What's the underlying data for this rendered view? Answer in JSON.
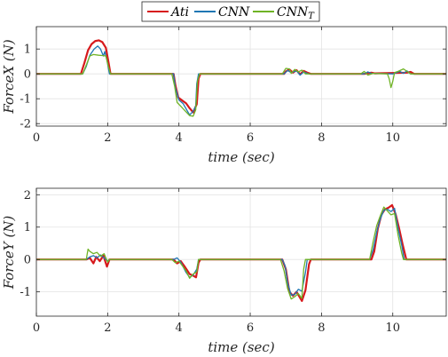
{
  "chart_data": [
    {
      "type": "line",
      "xlabel": "time (sec)",
      "ylabel": "ForceX (N)",
      "xlim": [
        0,
        11.5
      ],
      "ylim": [
        -2.1,
        1.9
      ],
      "xticks": [
        "0",
        "2",
        "4",
        "6",
        "8",
        "10"
      ],
      "yticks": [
        "-2",
        "-1",
        "0",
        "1"
      ],
      "grid": true,
      "series": [
        {
          "name": "Ati",
          "color": "#d7191c",
          "points": [
            [
              0,
              0
            ],
            [
              1.25,
              0
            ],
            [
              1.35,
              0.45
            ],
            [
              1.45,
              0.95
            ],
            [
              1.55,
              1.2
            ],
            [
              1.65,
              1.32
            ],
            [
              1.75,
              1.35
            ],
            [
              1.85,
              1.28
            ],
            [
              1.95,
              1.05
            ],
            [
              2.02,
              0.5
            ],
            [
              2.08,
              0
            ],
            [
              3.85,
              0
            ],
            [
              3.9,
              -0.45
            ],
            [
              3.98,
              -0.95
            ],
            [
              4.1,
              -1.08
            ],
            [
              4.2,
              -1.18
            ],
            [
              4.3,
              -1.38
            ],
            [
              4.4,
              -1.55
            ],
            [
              4.5,
              -1.22
            ],
            [
              4.55,
              -0.2
            ],
            [
              4.6,
              0
            ],
            [
              6.95,
              0
            ],
            [
              7.0,
              0.1
            ],
            [
              7.1,
              0.18
            ],
            [
              7.2,
              0.05
            ],
            [
              7.3,
              0.15
            ],
            [
              7.4,
              -0.02
            ],
            [
              7.5,
              0.12
            ],
            [
              7.6,
              0.05
            ],
            [
              7.7,
              0
            ],
            [
              9.2,
              0
            ],
            [
              9.4,
              0.05
            ],
            [
              9.5,
              0.02
            ],
            [
              10.4,
              0.05
            ],
            [
              10.5,
              0.08
            ],
            [
              10.6,
              0
            ],
            [
              11.5,
              0
            ]
          ]
        },
        {
          "name": "CNN",
          "color": "#1f77b4",
          "points": [
            [
              0,
              0
            ],
            [
              1.3,
              0
            ],
            [
              1.4,
              0.3
            ],
            [
              1.5,
              0.75
            ],
            [
              1.62,
              1.0
            ],
            [
              1.72,
              1.12
            ],
            [
              1.8,
              1.0
            ],
            [
              1.88,
              0.72
            ],
            [
              1.92,
              0.9
            ],
            [
              1.98,
              0.55
            ],
            [
              2.05,
              0
            ],
            [
              3.85,
              0
            ],
            [
              3.9,
              -0.55
            ],
            [
              4.0,
              -1.05
            ],
            [
              4.12,
              -1.2
            ],
            [
              4.22,
              -1.45
            ],
            [
              4.3,
              -1.65
            ],
            [
              4.4,
              -1.5
            ],
            [
              4.47,
              -1.3
            ],
            [
              4.5,
              -0.4
            ],
            [
              4.55,
              0
            ],
            [
              6.95,
              0
            ],
            [
              7.05,
              0.14
            ],
            [
              7.15,
              0.05
            ],
            [
              7.3,
              0.12
            ],
            [
              7.4,
              -0.05
            ],
            [
              7.5,
              0.08
            ],
            [
              7.65,
              0
            ],
            [
              9.2,
              0
            ],
            [
              9.3,
              0.08
            ],
            [
              9.4,
              0.02
            ],
            [
              10.0,
              0.0
            ],
            [
              10.2,
              0.1
            ],
            [
              10.3,
              0.02
            ],
            [
              10.4,
              0.12
            ],
            [
              10.5,
              0
            ],
            [
              11.5,
              0
            ]
          ]
        },
        {
          "name": "CNN_T",
          "color": "#6fb325",
          "points": [
            [
              0,
              0
            ],
            [
              1.3,
              0
            ],
            [
              1.4,
              0.35
            ],
            [
              1.5,
              0.72
            ],
            [
              1.6,
              0.78
            ],
            [
              1.75,
              0.75
            ],
            [
              1.85,
              0.74
            ],
            [
              1.95,
              0.72
            ],
            [
              2.02,
              0.3
            ],
            [
              2.08,
              0
            ],
            [
              3.8,
              0
            ],
            [
              3.88,
              -0.5
            ],
            [
              3.95,
              -1.15
            ],
            [
              4.05,
              -1.3
            ],
            [
              4.15,
              -1.45
            ],
            [
              4.3,
              -1.68
            ],
            [
              4.4,
              -1.7
            ],
            [
              4.47,
              -1.45
            ],
            [
              4.52,
              -0.3
            ],
            [
              4.58,
              0
            ],
            [
              6.9,
              0
            ],
            [
              7.0,
              0.22
            ],
            [
              7.1,
              0.2
            ],
            [
              7.15,
              0.02
            ],
            [
              7.25,
              0.18
            ],
            [
              7.35,
              0.08
            ],
            [
              7.45,
              0.15
            ],
            [
              7.55,
              0
            ],
            [
              9.1,
              0
            ],
            [
              9.2,
              0.1
            ],
            [
              9.3,
              -0.05
            ],
            [
              9.45,
              0.02
            ],
            [
              9.85,
              0
            ],
            [
              9.9,
              -0.2
            ],
            [
              9.95,
              -0.55
            ],
            [
              10.0,
              -0.3
            ],
            [
              10.05,
              0.05
            ],
            [
              10.15,
              0.1
            ],
            [
              10.3,
              0.2
            ],
            [
              10.4,
              0.1
            ],
            [
              10.5,
              0
            ],
            [
              11.5,
              0
            ]
          ]
        }
      ]
    },
    {
      "type": "line",
      "xlabel": "time (sec)",
      "ylabel": "ForceY (N)",
      "xlim": [
        0,
        11.5
      ],
      "ylim": [
        -1.75,
        2.2
      ],
      "xticks": [
        "0",
        "2",
        "4",
        "6",
        "8",
        "10"
      ],
      "yticks": [
        "-1",
        "0",
        "1",
        "2"
      ],
      "grid": true,
      "series": [
        {
          "name": "Ati",
          "color": "#d7191c",
          "points": [
            [
              0,
              0
            ],
            [
              1.4,
              0
            ],
            [
              1.5,
              0.05
            ],
            [
              1.6,
              -0.12
            ],
            [
              1.68,
              0.08
            ],
            [
              1.78,
              -0.05
            ],
            [
              1.88,
              0.12
            ],
            [
              1.98,
              -0.22
            ],
            [
              2.05,
              0
            ],
            [
              3.85,
              0
            ],
            [
              3.95,
              -0.12
            ],
            [
              4.05,
              -0.05
            ],
            [
              4.15,
              -0.2
            ],
            [
              4.3,
              -0.45
            ],
            [
              4.4,
              -0.5
            ],
            [
              4.48,
              -0.55
            ],
            [
              4.55,
              -0.1
            ],
            [
              4.6,
              0
            ],
            [
              6.9,
              0
            ],
            [
              7.0,
              -0.3
            ],
            [
              7.1,
              -1.0
            ],
            [
              7.2,
              -1.12
            ],
            [
              7.3,
              -1.0
            ],
            [
              7.45,
              -1.28
            ],
            [
              7.55,
              -0.95
            ],
            [
              7.65,
              -0.15
            ],
            [
              7.7,
              0
            ],
            [
              9.4,
              0
            ],
            [
              9.48,
              0.25
            ],
            [
              9.58,
              0.95
            ],
            [
              9.68,
              1.38
            ],
            [
              9.78,
              1.55
            ],
            [
              9.88,
              1.6
            ],
            [
              9.98,
              1.68
            ],
            [
              10.08,
              1.4
            ],
            [
              10.18,
              0.95
            ],
            [
              10.28,
              0.45
            ],
            [
              10.38,
              0
            ],
            [
              11.5,
              0
            ]
          ]
        },
        {
          "name": "CNN",
          "color": "#1f77b4",
          "points": [
            [
              0,
              0
            ],
            [
              1.4,
              0
            ],
            [
              1.5,
              0.08
            ],
            [
              1.6,
              0.12
            ],
            [
              1.7,
              0.05
            ],
            [
              1.8,
              0.14
            ],
            [
              1.9,
              0.05
            ],
            [
              2.0,
              -0.05
            ],
            [
              2.05,
              0
            ],
            [
              3.85,
              0
            ],
            [
              3.95,
              0.05
            ],
            [
              4.05,
              -0.08
            ],
            [
              4.2,
              -0.4
            ],
            [
              4.3,
              -0.55
            ],
            [
              4.4,
              -0.48
            ],
            [
              4.5,
              -0.3
            ],
            [
              4.55,
              0
            ],
            [
              6.9,
              0
            ],
            [
              6.98,
              -0.2
            ],
            [
              7.05,
              -0.72
            ],
            [
              7.15,
              -1.1
            ],
            [
              7.25,
              -1.08
            ],
            [
              7.35,
              -0.92
            ],
            [
              7.45,
              -0.98
            ],
            [
              7.55,
              -0.4
            ],
            [
              7.6,
              0
            ],
            [
              9.35,
              0
            ],
            [
              9.45,
              0.3
            ],
            [
              9.55,
              0.85
            ],
            [
              9.65,
              1.25
            ],
            [
              9.75,
              1.52
            ],
            [
              9.85,
              1.55
            ],
            [
              9.95,
              1.48
            ],
            [
              10.05,
              1.58
            ],
            [
              10.15,
              0.95
            ],
            [
              10.25,
              0.45
            ],
            [
              10.32,
              0
            ],
            [
              11.5,
              0
            ]
          ]
        },
        {
          "name": "CNN_T",
          "color": "#6fb325",
          "points": [
            [
              0,
              0
            ],
            [
              1.4,
              0
            ],
            [
              1.45,
              0.32
            ],
            [
              1.5,
              0.25
            ],
            [
              1.6,
              0.18
            ],
            [
              1.7,
              0.22
            ],
            [
              1.8,
              0.1
            ],
            [
              1.9,
              0.18
            ],
            [
              2.0,
              -0.08
            ],
            [
              2.05,
              0
            ],
            [
              3.8,
              0
            ],
            [
              3.9,
              -0.1
            ],
            [
              4.0,
              -0.05
            ],
            [
              4.1,
              -0.2
            ],
            [
              4.2,
              -0.35
            ],
            [
              4.3,
              -0.58
            ],
            [
              4.4,
              -0.45
            ],
            [
              4.5,
              -0.38
            ],
            [
              4.55,
              0
            ],
            [
              6.85,
              0
            ],
            [
              6.95,
              -0.35
            ],
            [
              7.05,
              -0.9
            ],
            [
              7.15,
              -1.22
            ],
            [
              7.25,
              -1.15
            ],
            [
              7.35,
              -1.05
            ],
            [
              7.45,
              -1.2
            ],
            [
              7.5,
              -0.3
            ],
            [
              7.55,
              0
            ],
            [
              9.35,
              0
            ],
            [
              9.45,
              0.55
            ],
            [
              9.55,
              1.05
            ],
            [
              9.65,
              1.35
            ],
            [
              9.75,
              1.62
            ],
            [
              9.85,
              1.5
            ],
            [
              9.95,
              1.38
            ],
            [
              10.05,
              1.42
            ],
            [
              10.15,
              0.75
            ],
            [
              10.25,
              0.2
            ],
            [
              10.3,
              0
            ],
            [
              11.5,
              0
            ]
          ]
        }
      ]
    }
  ],
  "legend": {
    "items": [
      {
        "name": "Ati",
        "color": "#d7191c"
      },
      {
        "name": "CNN",
        "color": "#1f77b4"
      },
      {
        "name": "CNN",
        "subscript": "T",
        "color": "#6fb325"
      }
    ]
  }
}
